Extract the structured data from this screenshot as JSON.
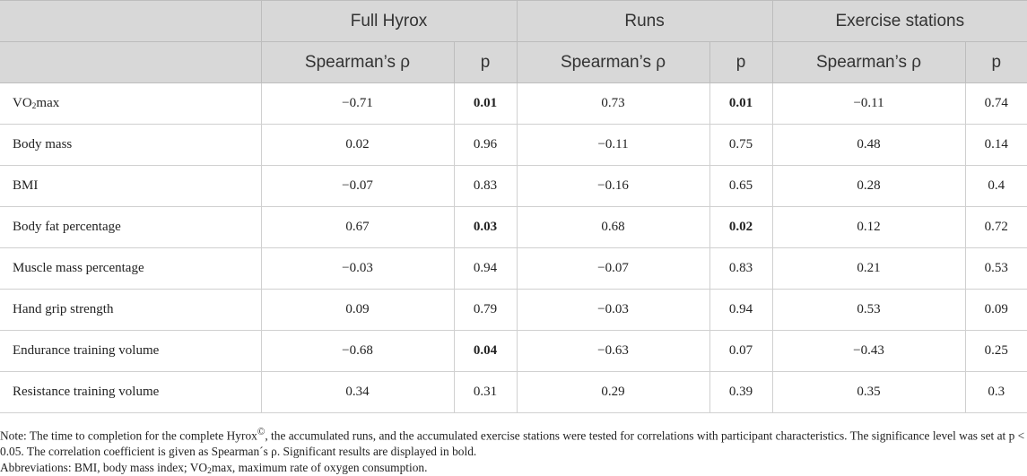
{
  "table": {
    "groups": [
      "Full Hyrox",
      "Runs",
      "Exercise stations"
    ],
    "subheaders": [
      "Spearman’s ρ",
      "p",
      "Spearman’s ρ",
      "p",
      "Spearman’s ρ",
      "p"
    ],
    "rows": [
      {
        "label_main": "VO",
        "label_sub": "2",
        "label_rest": "max",
        "cells": [
          "−0.71",
          "0.01",
          "0.73",
          "0.01",
          "−0.11",
          "0.74"
        ],
        "bold": [
          false,
          true,
          false,
          true,
          false,
          false
        ]
      },
      {
        "label_main": "Body mass",
        "cells": [
          "0.02",
          "0.96",
          "−0.11",
          "0.75",
          "0.48",
          "0.14"
        ],
        "bold": [
          false,
          false,
          false,
          false,
          false,
          false
        ]
      },
      {
        "label_main": "BMI",
        "cells": [
          "−0.07",
          "0.83",
          "−0.16",
          "0.65",
          "0.28",
          "0.4"
        ],
        "bold": [
          false,
          false,
          false,
          false,
          false,
          false
        ]
      },
      {
        "label_main": "Body fat percentage",
        "cells": [
          "0.67",
          "0.03",
          "0.68",
          "0.02",
          "0.12",
          "0.72"
        ],
        "bold": [
          false,
          true,
          false,
          true,
          false,
          false
        ]
      },
      {
        "label_main": "Muscle mass percentage",
        "cells": [
          "−0.03",
          "0.94",
          "−0.07",
          "0.83",
          "0.21",
          "0.53"
        ],
        "bold": [
          false,
          false,
          false,
          false,
          false,
          false
        ]
      },
      {
        "label_main": "Hand grip strength",
        "cells": [
          "0.09",
          "0.79",
          "−0.03",
          "0.94",
          "0.53",
          "0.09"
        ],
        "bold": [
          false,
          false,
          false,
          false,
          false,
          false
        ]
      },
      {
        "label_main": "Endurance training volume",
        "cells": [
          "−0.68",
          "0.04",
          "−0.63",
          "0.07",
          "−0.43",
          "0.25"
        ],
        "bold": [
          false,
          true,
          false,
          false,
          false,
          false
        ]
      },
      {
        "label_main": "Resistance training volume",
        "cells": [
          "0.34",
          "0.31",
          "0.29",
          "0.39",
          "0.35",
          "0.3"
        ],
        "bold": [
          false,
          false,
          false,
          false,
          false,
          false
        ]
      }
    ]
  },
  "notes": {
    "note_main": "Note: The time to completion for the complete Hyrox",
    "note_sup": "©",
    "note_rest": ", the accumulated runs, and the accumulated exercise stations were tested for correlations with participant characteristics. The significance level was set at p < 0.05. The correlation coefficient is given as Spearman´s ρ. Significant results are displayed in bold.",
    "abbrev_main": "Abbreviations: BMI, body mass index; VO",
    "abbrev_sub": "2",
    "abbrev_rest": "max, maximum rate of oxygen consumption."
  }
}
